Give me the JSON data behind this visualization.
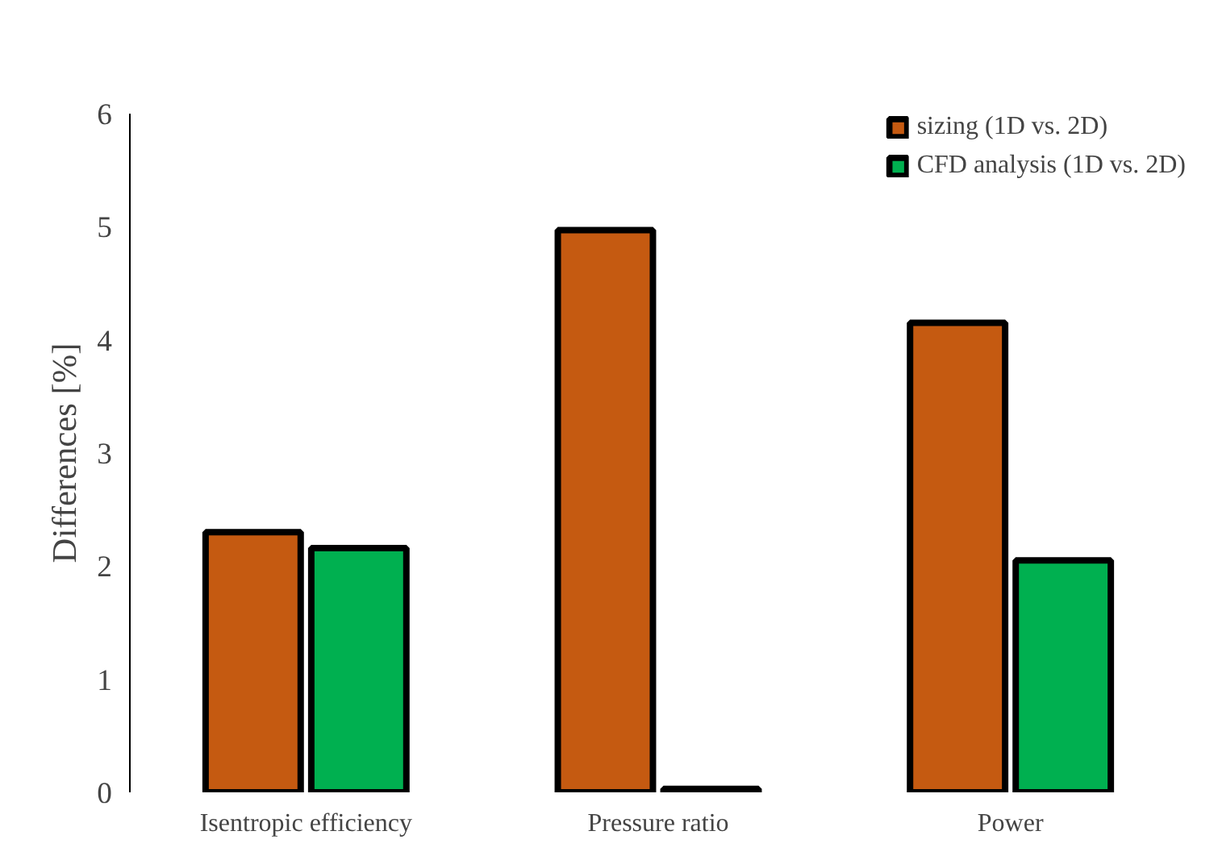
{
  "chart_data": {
    "type": "bar",
    "ylabel": "Differences [%]",
    "categories": [
      "Isentropic efficiency",
      "Pressure ratio",
      "Power"
    ],
    "series": [
      {
        "name": "sizing (1D vs. 2D)",
        "color": "#c55a11",
        "values": [
          2.3,
          4.97,
          4.15
        ]
      },
      {
        "name": "CFD analysis (1D vs. 2D)",
        "color": "#00b050",
        "values": [
          2.16,
          0.03,
          2.05
        ]
      }
    ],
    "ylim": [
      0,
      6
    ],
    "yticks": [
      0,
      1,
      2,
      3,
      4,
      5,
      6
    ],
    "grid": false,
    "legend": "top right"
  }
}
